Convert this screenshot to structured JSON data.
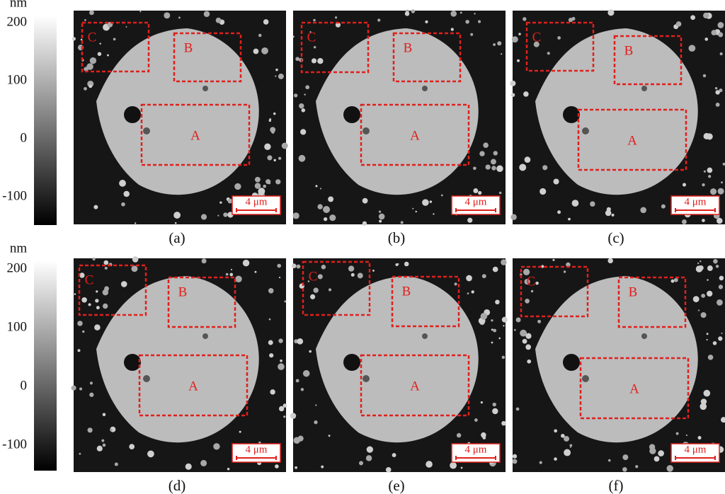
{
  "colorbars": [
    {
      "unit": "nm",
      "ticks": [
        200,
        100,
        0,
        -100
      ]
    },
    {
      "unit": "nm",
      "ticks": [
        200,
        100,
        0,
        -100
      ]
    }
  ],
  "panels": [
    {
      "label": "(a)",
      "regions": [
        "A",
        "B",
        "C"
      ],
      "scale_bar": "4 μm"
    },
    {
      "label": "(b)",
      "regions": [
        "A",
        "B",
        "C"
      ],
      "scale_bar": "4 μm"
    },
    {
      "label": "(c)",
      "regions": [
        "A",
        "B",
        "C"
      ],
      "scale_bar": "4 μm"
    },
    {
      "label": "(d)",
      "regions": [
        "A",
        "B",
        "C"
      ],
      "scale_bar": "4 μm"
    },
    {
      "label": "(e)",
      "regions": [
        "A",
        "B",
        "C"
      ],
      "scale_bar": "4 μm"
    },
    {
      "label": "(f)",
      "regions": [
        "A",
        "B",
        "C"
      ],
      "scale_bar": "4 μm"
    }
  ]
}
